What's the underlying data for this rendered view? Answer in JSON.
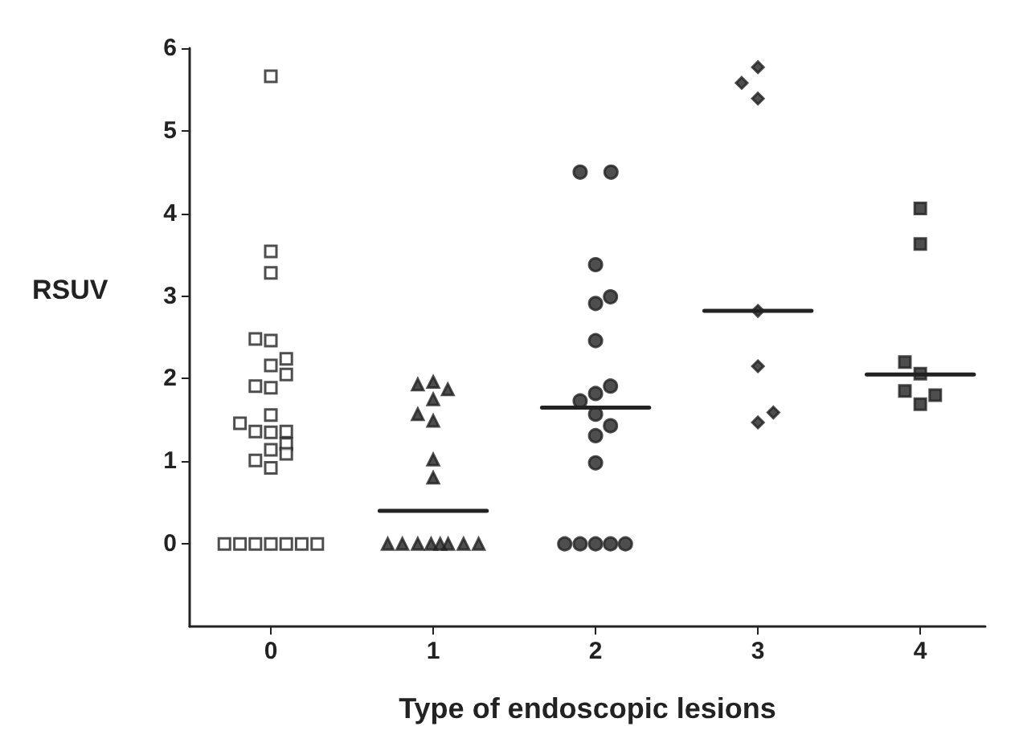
{
  "chart_data": {
    "type": "scatter",
    "xlabel": "Type of endoscopic lesions",
    "ylabel": "RSUV",
    "xlim": [
      -0.5,
      4.4
    ],
    "xticks": [
      0,
      1,
      2,
      3,
      4
    ],
    "ylim": [
      -1,
      6
    ],
    "yticks": [
      0,
      1,
      2,
      3,
      4,
      5,
      6
    ],
    "grid": false,
    "series": [
      {
        "marker": "square",
        "color": "#ffffff",
        "x": [
          0,
          0,
          0,
          -0.095,
          0,
          0.095,
          0,
          0.095,
          -0.095,
          0,
          0,
          -0.19,
          -0.095,
          0,
          0.095,
          0.095,
          0,
          0.095,
          -0.095,
          0,
          -0.286,
          -0.19,
          -0.095,
          0,
          0.095,
          0.19,
          0.286
        ],
        "values": [
          5.66,
          3.54,
          3.28,
          2.48,
          2.46,
          2.24,
          2.16,
          2.05,
          1.91,
          1.89,
          1.56,
          1.46,
          1.36,
          1.35,
          1.36,
          1.21,
          1.14,
          1.09,
          1.01,
          0.92,
          0,
          0,
          0,
          0,
          0,
          0,
          0
        ]
      },
      {
        "marker": "triangle",
        "color": "#222222",
        "x": [
          1,
          0.905,
          1.09,
          1,
          0.905,
          1,
          1,
          1,
          0.72,
          0.81,
          0.905,
          0.987,
          1.043,
          1.092,
          1.187,
          1.28
        ],
        "values": [
          1.96,
          1.93,
          1.87,
          1.75,
          1.57,
          1.49,
          1.02,
          0.8,
          0,
          0,
          0,
          0,
          0,
          0,
          0,
          0
        ]
      },
      {
        "marker": "circle",
        "color": "#222222",
        "x": [
          1.905,
          2.095,
          2,
          2,
          2.092,
          2,
          2.092,
          2,
          1.905,
          2,
          2.092,
          2,
          2,
          1.81,
          1.905,
          2,
          2.092,
          2.184
        ],
        "values": [
          4.5,
          4.5,
          3.38,
          2.91,
          2.99,
          2.46,
          1.91,
          1.82,
          1.73,
          1.57,
          1.43,
          1.31,
          0.98,
          0,
          0,
          0,
          0,
          0
        ]
      },
      {
        "marker": "diamond",
        "color": "#222222",
        "x": [
          3,
          2.9,
          3,
          3,
          3,
          3.095,
          3
        ],
        "values": [
          5.77,
          5.58,
          5.39,
          2.82,
          2.15,
          1.59,
          1.47
        ]
      },
      {
        "marker": "square",
        "color": "#222222",
        "x": [
          4,
          4,
          3.905,
          4,
          3.905,
          4.092,
          4
        ],
        "values": [
          4.06,
          3.63,
          2.2,
          2.06,
          1.85,
          1.8,
          1.69
        ]
      },
      {
        "type": "line",
        "marker": "none",
        "color": "#222222",
        "x": [
          0.67,
          1.33
        ],
        "values": [
          0.4,
          0.4
        ]
      },
      {
        "type": "line",
        "marker": "none",
        "color": "#222222",
        "x": [
          1.67,
          2.33
        ],
        "values": [
          1.65,
          1.65
        ]
      },
      {
        "type": "line",
        "marker": "none",
        "color": "#222222",
        "x": [
          2.67,
          3.33
        ],
        "values": [
          2.82,
          2.82
        ]
      },
      {
        "type": "line",
        "marker": "none",
        "color": "#222222",
        "x": [
          3.67,
          4.33
        ],
        "values": [
          2.05,
          2.05
        ]
      }
    ]
  }
}
